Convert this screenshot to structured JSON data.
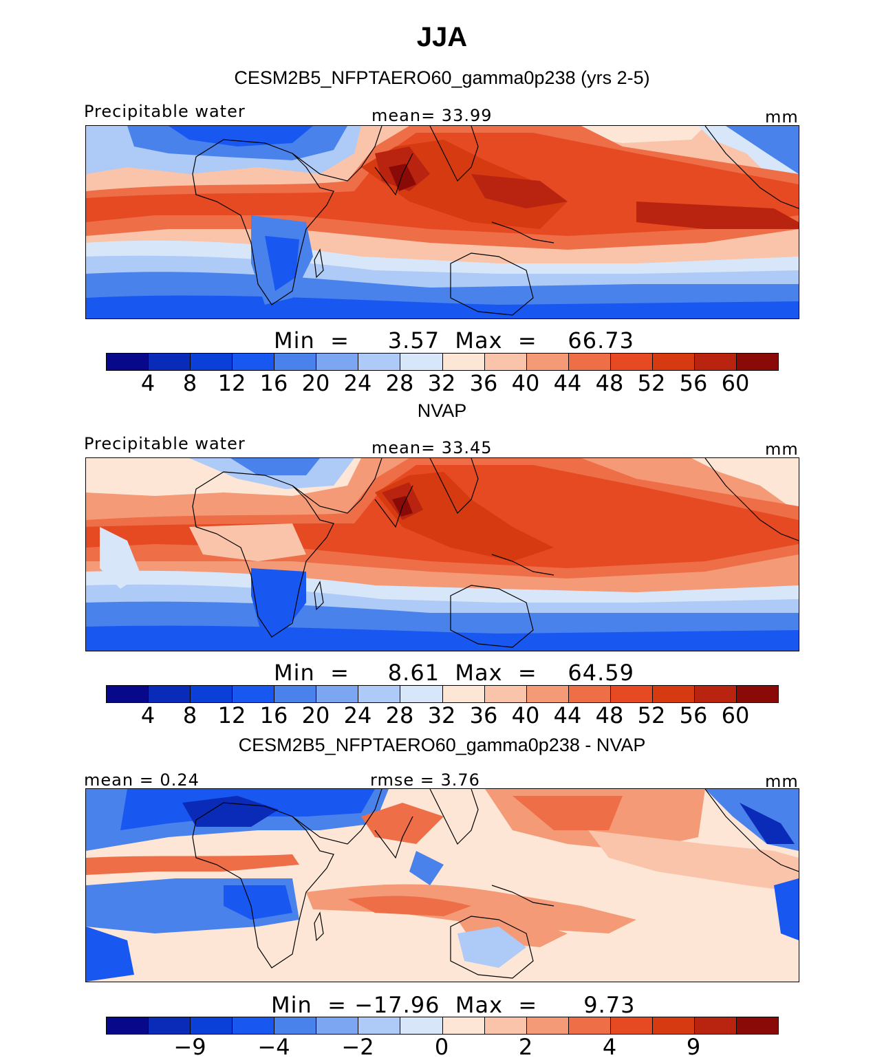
{
  "title": "JJA",
  "colors": [
    "#08088a",
    "#0a2ab8",
    "#0a40d8",
    "#1858f0",
    "#4a82ec",
    "#7ca6f2",
    "#aecaf6",
    "#d8e6fa",
    "#fde6d6",
    "#f9c4aa",
    "#f49a76",
    "#ee6e48",
    "#e64a22",
    "#d63a10",
    "#b82410",
    "#8a0a08"
  ],
  "panels": [
    {
      "id": "model",
      "title": "CESM2B5_NFPTAERO60_gamma0p238 (yrs 2-5)",
      "left_label": "Precipitable  water",
      "center_label": "mean=   33.99",
      "units": "mm",
      "minmax": "Min  =     3.57  Max  =    66.73",
      "ticks": [
        "4",
        "8",
        "12",
        "16",
        "20",
        "24",
        "28",
        "32",
        "36",
        "40",
        "44",
        "48",
        "52",
        "56",
        "60"
      ]
    },
    {
      "id": "obs",
      "title": "NVAP",
      "left_label": "Precipitable  water",
      "center_label": "mean=   33.45",
      "units": "mm",
      "minmax": "Min  =     8.61  Max  =    64.59",
      "ticks": [
        "4",
        "8",
        "12",
        "16",
        "20",
        "24",
        "28",
        "32",
        "36",
        "40",
        "44",
        "48",
        "52",
        "56",
        "60"
      ]
    },
    {
      "id": "diff",
      "title": "CESM2B5_NFPTAERO60_gamma0p238 - NVAP",
      "left_label": "mean  =    0.24",
      "center_label": "rmse  =     3.76",
      "units": "mm",
      "minmax": "Min  = −17.96  Max  =      9.73",
      "ticks": [
        "−9",
        "−4",
        "−2",
        "0",
        "2",
        "4",
        "9"
      ]
    }
  ]
}
